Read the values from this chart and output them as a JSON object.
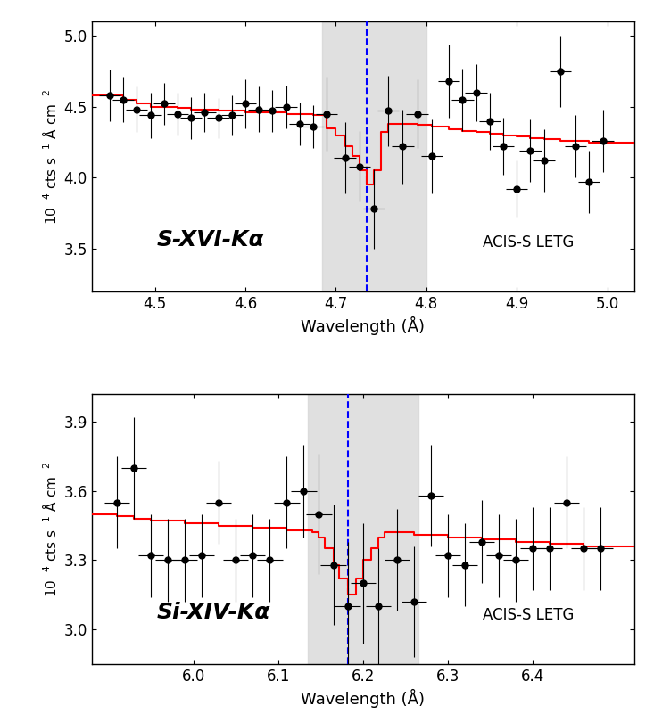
{
  "panel1": {
    "title_label": "S-XVI-Kα",
    "instrument": "ACIS-S LETG",
    "xlabel": "Wavelength (Å)",
    "ylabel": "10$^{-4}$ cts s$^{-1}$ Å cm$^{-2}$",
    "xlim": [
      4.43,
      5.03
    ],
    "ylim": [
      3.2,
      5.1
    ],
    "yticks": [
      3.5,
      4.0,
      4.5,
      5.0
    ],
    "xticks": [
      4.5,
      4.6,
      4.7,
      4.8,
      4.9,
      5.0
    ],
    "dashed_line_x": 4.734,
    "shade_xmin": 4.685,
    "shade_xmax": 4.8,
    "data_x": [
      4.45,
      4.465,
      4.48,
      4.495,
      4.51,
      4.525,
      4.54,
      4.555,
      4.57,
      4.585,
      4.6,
      4.615,
      4.63,
      4.645,
      4.66,
      4.675,
      4.69,
      4.71,
      4.726,
      4.742,
      4.758,
      4.774,
      4.79,
      4.806,
      4.825,
      4.84,
      4.855,
      4.87,
      4.885,
      4.9,
      4.915,
      4.93,
      4.948,
      4.965,
      4.98,
      4.995
    ],
    "data_y": [
      4.58,
      4.55,
      4.48,
      4.44,
      4.52,
      4.45,
      4.42,
      4.46,
      4.42,
      4.44,
      4.52,
      4.48,
      4.47,
      4.5,
      4.38,
      4.36,
      4.45,
      4.14,
      4.08,
      3.78,
      4.47,
      4.22,
      4.45,
      4.15,
      4.68,
      4.55,
      4.6,
      4.4,
      4.22,
      3.92,
      4.19,
      4.12,
      4.75,
      4.22,
      3.97,
      4.26
    ],
    "data_xerr": [
      0.012,
      0.012,
      0.012,
      0.012,
      0.012,
      0.012,
      0.012,
      0.012,
      0.012,
      0.012,
      0.012,
      0.012,
      0.012,
      0.012,
      0.012,
      0.012,
      0.012,
      0.012,
      0.012,
      0.012,
      0.012,
      0.012,
      0.012,
      0.012,
      0.012,
      0.012,
      0.012,
      0.012,
      0.012,
      0.012,
      0.012,
      0.012,
      0.012,
      0.012,
      0.012,
      0.012
    ],
    "data_yerr": [
      0.18,
      0.16,
      0.16,
      0.16,
      0.15,
      0.15,
      0.15,
      0.14,
      0.14,
      0.14,
      0.17,
      0.16,
      0.15,
      0.15,
      0.15,
      0.15,
      0.26,
      0.25,
      0.25,
      0.28,
      0.25,
      0.26,
      0.24,
      0.26,
      0.26,
      0.22,
      0.2,
      0.2,
      0.2,
      0.2,
      0.22,
      0.22,
      0.25,
      0.22,
      0.22,
      0.22
    ],
    "model_x": [
      4.43,
      4.451,
      4.465,
      4.48,
      4.495,
      4.51,
      4.525,
      4.54,
      4.555,
      4.57,
      4.585,
      4.6,
      4.615,
      4.63,
      4.645,
      4.66,
      4.675,
      4.69,
      4.7,
      4.71,
      4.718,
      4.726,
      4.734,
      4.742,
      4.75,
      4.758,
      4.774,
      4.79,
      4.806,
      4.825,
      4.84,
      4.855,
      4.87,
      4.885,
      4.9,
      4.915,
      4.93,
      4.948,
      4.965,
      4.98,
      4.995,
      5.03
    ],
    "model_y": [
      4.58,
      4.58,
      4.55,
      4.52,
      4.5,
      4.5,
      4.49,
      4.48,
      4.48,
      4.47,
      4.47,
      4.46,
      4.46,
      4.46,
      4.45,
      4.45,
      4.44,
      4.35,
      4.3,
      4.22,
      4.15,
      4.05,
      3.95,
      4.05,
      4.32,
      4.38,
      4.38,
      4.37,
      4.36,
      4.34,
      4.33,
      4.32,
      4.31,
      4.3,
      4.29,
      4.28,
      4.27,
      4.26,
      4.26,
      4.25,
      4.25,
      4.24
    ]
  },
  "panel2": {
    "title_label": "Si-XIV-Kα",
    "instrument": "ACIS-S LETG",
    "xlabel": "Wavelength (Å)",
    "ylabel": "10$^{-4}$ cts s$^{-1}$ Å cm$^{-2}$",
    "xlim": [
      5.88,
      6.52
    ],
    "ylim": [
      2.85,
      4.02
    ],
    "yticks": [
      3.0,
      3.3,
      3.6,
      3.9
    ],
    "xticks": [
      6.0,
      6.1,
      6.2,
      6.3,
      6.4
    ],
    "dashed_line_x": 6.182,
    "shade_xmin": 6.135,
    "shade_xmax": 6.265,
    "data_x": [
      5.91,
      5.93,
      5.95,
      5.97,
      5.99,
      6.01,
      6.03,
      6.05,
      6.07,
      6.09,
      6.11,
      6.13,
      6.148,
      6.165,
      6.182,
      6.2,
      6.218,
      6.24,
      6.26,
      6.28,
      6.3,
      6.32,
      6.34,
      6.36,
      6.38,
      6.4,
      6.42,
      6.44,
      6.46,
      6.48
    ],
    "data_y": [
      3.55,
      3.7,
      3.32,
      3.3,
      3.3,
      3.32,
      3.55,
      3.3,
      3.32,
      3.3,
      3.55,
      3.6,
      3.5,
      3.28,
      3.1,
      3.2,
      3.1,
      3.3,
      3.12,
      3.58,
      3.32,
      3.28,
      3.38,
      3.32,
      3.3,
      3.35,
      3.35,
      3.55,
      3.35,
      3.35
    ],
    "data_xerr": [
      0.015,
      0.015,
      0.015,
      0.015,
      0.015,
      0.015,
      0.015,
      0.015,
      0.015,
      0.015,
      0.015,
      0.015,
      0.015,
      0.015,
      0.015,
      0.015,
      0.015,
      0.015,
      0.015,
      0.015,
      0.015,
      0.015,
      0.015,
      0.015,
      0.015,
      0.015,
      0.015,
      0.015,
      0.015,
      0.015
    ],
    "data_yerr": [
      0.2,
      0.22,
      0.18,
      0.18,
      0.18,
      0.18,
      0.18,
      0.18,
      0.18,
      0.18,
      0.2,
      0.2,
      0.26,
      0.26,
      0.28,
      0.26,
      0.25,
      0.22,
      0.24,
      0.22,
      0.18,
      0.18,
      0.18,
      0.18,
      0.18,
      0.18,
      0.18,
      0.2,
      0.18,
      0.18
    ],
    "model_x": [
      5.88,
      5.91,
      5.93,
      5.95,
      5.97,
      5.99,
      6.01,
      6.03,
      6.05,
      6.07,
      6.09,
      6.11,
      6.13,
      6.14,
      6.148,
      6.155,
      6.165,
      6.172,
      6.182,
      6.192,
      6.2,
      6.21,
      6.218,
      6.225,
      6.24,
      6.26,
      6.28,
      6.3,
      6.32,
      6.34,
      6.36,
      6.38,
      6.4,
      6.42,
      6.44,
      6.46,
      6.48,
      6.52
    ],
    "model_y": [
      3.5,
      3.49,
      3.48,
      3.47,
      3.47,
      3.46,
      3.46,
      3.45,
      3.45,
      3.44,
      3.44,
      3.43,
      3.43,
      3.42,
      3.4,
      3.35,
      3.28,
      3.22,
      3.15,
      3.22,
      3.3,
      3.35,
      3.4,
      3.42,
      3.42,
      3.41,
      3.41,
      3.4,
      3.4,
      3.39,
      3.39,
      3.38,
      3.38,
      3.37,
      3.37,
      3.36,
      3.36,
      3.36
    ]
  }
}
